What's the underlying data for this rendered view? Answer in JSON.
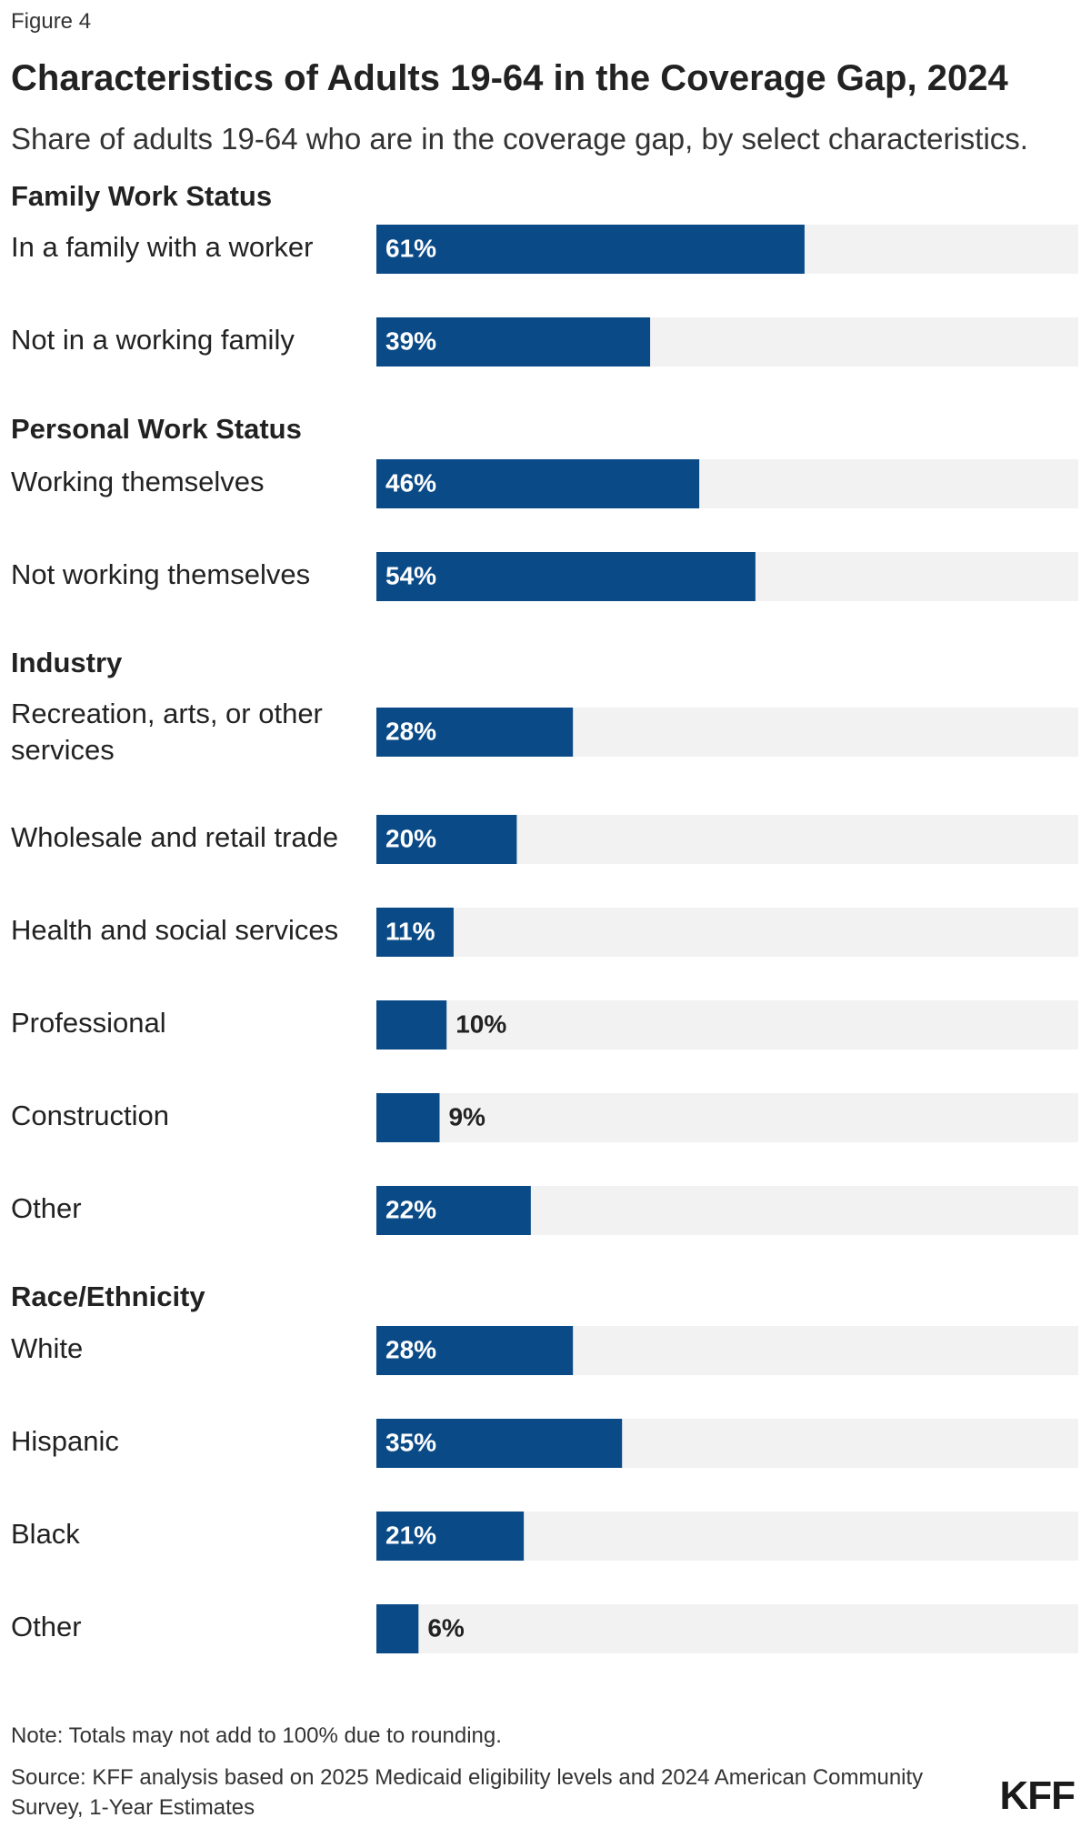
{
  "figure_label": "Figure 4",
  "title": "Characteristics of Adults 19-64 in the Coverage Gap, 2024",
  "subtitle": "Share of adults 19-64 who are in the coverage gap, by select characteristics.",
  "note": "Note: Totals may not add to 100% due to rounding.",
  "source": "Source: KFF analysis based on 2025 Medicaid eligibility levels and 2024 American Community Survey, 1-Year Estimates",
  "logo": "KFF",
  "colors": {
    "bar": "#0a4a87",
    "track": "#f2f2f2",
    "label_inside": "#ffffff",
    "label_outside": "#222222"
  },
  "chart_data": {
    "type": "bar",
    "orientation": "horizontal",
    "unit": "%",
    "xlim": [
      0,
      100
    ],
    "groups": [
      {
        "name": "Family Work Status",
        "categories": [
          "In a family with a worker",
          "Not in a working family"
        ],
        "values": [
          61,
          39
        ]
      },
      {
        "name": "Personal Work Status",
        "categories": [
          "Working themselves",
          "Not working themselves"
        ],
        "values": [
          46,
          54
        ]
      },
      {
        "name": "Industry",
        "categories": [
          "Recreation, arts, or other services",
          "Wholesale and retail trade",
          "Health and social services",
          "Professional",
          "Construction",
          "Other"
        ],
        "values": [
          28,
          20,
          11,
          10,
          9,
          22
        ]
      },
      {
        "name": "Race/Ethnicity",
        "categories": [
          "White",
          "Hispanic",
          "Black",
          "Other"
        ],
        "values": [
          28,
          35,
          21,
          6
        ]
      }
    ]
  }
}
